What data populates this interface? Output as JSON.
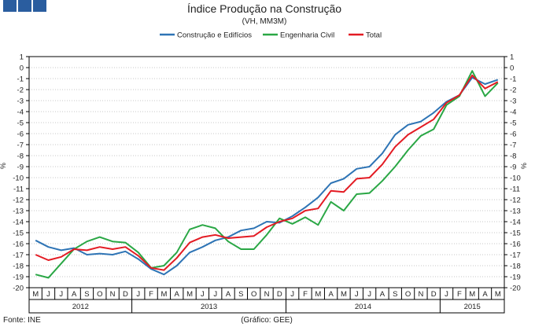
{
  "header": {
    "logo_icon": "ine-logo-squares",
    "title": "Índice Produção na Construção",
    "subtitle": "(VH, MM3M)"
  },
  "footer": {
    "source": "Fonte: INE",
    "credit": "(Gráfico: GEE)"
  },
  "chart_data": {
    "type": "line",
    "title": "Índice Produção na Construção",
    "subtitle": "(VH, MM3M)",
    "ylabel": "%",
    "ylim": [
      -20,
      1
    ],
    "yticks": [
      1,
      0,
      -1,
      -2,
      -3,
      -4,
      -5,
      -6,
      -7,
      -8,
      -9,
      -10,
      -11,
      -12,
      -13,
      -14,
      -15,
      -16,
      -17,
      -18,
      -19,
      -20
    ],
    "grid": true,
    "legend_position": "top",
    "x": [
      "M",
      "J",
      "J",
      "A",
      "S",
      "O",
      "N",
      "D",
      "J",
      "F",
      "M",
      "A",
      "M",
      "J",
      "J",
      "A",
      "S",
      "O",
      "N",
      "D",
      "J",
      "F",
      "M",
      "A",
      "M",
      "J",
      "J",
      "A",
      "S",
      "O",
      "N",
      "D",
      "J",
      "F",
      "M",
      "A",
      "M"
    ],
    "years": [
      {
        "label": "2012",
        "start": 0,
        "end": 7
      },
      {
        "label": "2013",
        "start": 8,
        "end": 19
      },
      {
        "label": "2014",
        "start": 20,
        "end": 31
      },
      {
        "label": "2015",
        "start": 32,
        "end": 36
      }
    ],
    "series": [
      {
        "name": "Construção e Edifícios",
        "color": "#2e74b5",
        "values": [
          -15.7,
          -16.3,
          -16.6,
          -16.4,
          -17.0,
          -16.9,
          -17.0,
          -16.7,
          -17.4,
          -18.3,
          -18.8,
          -18.0,
          -16.8,
          -16.3,
          -15.7,
          -15.4,
          -14.8,
          -14.6,
          -14.0,
          -14.1,
          -13.5,
          -12.7,
          -11.8,
          -10.5,
          -10.1,
          -9.2,
          -9.0,
          -7.8,
          -6.1,
          -5.2,
          -4.9,
          -4.1,
          -3.1,
          -2.5,
          -0.9,
          -1.5,
          -1.1
        ]
      },
      {
        "name": "Engenharia Civil",
        "color": "#2aa745",
        "values": [
          -18.8,
          -19.1,
          -17.8,
          -16.5,
          -15.8,
          -15.4,
          -15.8,
          -15.9,
          -16.8,
          -18.2,
          -18.0,
          -16.8,
          -14.7,
          -14.3,
          -14.6,
          -15.8,
          -16.5,
          -16.5,
          -15.2,
          -13.7,
          -14.2,
          -13.6,
          -14.3,
          -12.2,
          -13.0,
          -11.5,
          -11.4,
          -10.3,
          -9.0,
          -7.5,
          -6.2,
          -5.6,
          -3.4,
          -2.6,
          -0.3,
          -2.6,
          -1.4
        ]
      },
      {
        "name": "Total",
        "color": "#e31b23",
        "values": [
          -17.0,
          -17.5,
          -17.2,
          -16.5,
          -16.6,
          -16.3,
          -16.5,
          -16.3,
          -17.1,
          -18.2,
          -18.4,
          -17.3,
          -15.9,
          -15.4,
          -15.2,
          -15.5,
          -15.4,
          -15.3,
          -14.5,
          -14.0,
          -13.7,
          -13.0,
          -12.8,
          -11.2,
          -11.3,
          -10.1,
          -10.0,
          -8.8,
          -7.2,
          -6.1,
          -5.4,
          -4.7,
          -3.2,
          -2.5,
          -0.7,
          -1.9,
          -1.3
        ]
      }
    ]
  }
}
